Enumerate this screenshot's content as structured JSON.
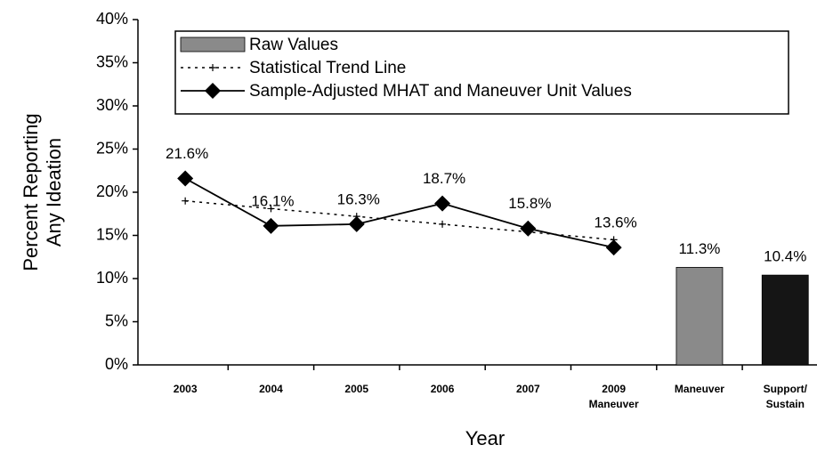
{
  "chart_data": {
    "type": "line",
    "x_label": "Year",
    "y_label": "Percent Reporting\nAny Ideation",
    "categories": [
      "2003",
      "2004",
      "2005",
      "2006",
      "2007",
      "2009\nManeuver",
      "Maneuver",
      "Support/\nSustain"
    ],
    "ylim": [
      0,
      40
    ],
    "yticks": [
      {
        "value": 0,
        "label": "0%"
      },
      {
        "value": 5,
        "label": "5%"
      },
      {
        "value": 10,
        "label": "10%"
      },
      {
        "value": 15,
        "label": "15%"
      },
      {
        "value": 20,
        "label": "20%"
      },
      {
        "value": 25,
        "label": "25%"
      },
      {
        "value": 30,
        "label": "30%"
      },
      {
        "value": 35,
        "label": "35%"
      },
      {
        "value": 40,
        "label": "40%"
      }
    ],
    "legend": "top",
    "series": [
      {
        "name": "Raw Values",
        "kind": "bar",
        "colors": [
          "#8a8a8a",
          "#151515"
        ],
        "values": [
          null,
          null,
          null,
          null,
          null,
          null,
          11.3,
          10.4
        ],
        "value_labels": [
          null,
          null,
          null,
          null,
          null,
          null,
          "11.3%",
          "10.4%"
        ]
      },
      {
        "name": "Statistical Trend Line",
        "kind": "trend",
        "color": "#000000",
        "values": [
          19.0,
          18.1,
          17.2,
          16.3,
          15.4,
          14.5,
          null,
          null
        ]
      },
      {
        "name": "Sample-Adjusted MHAT and Maneuver Unit Values",
        "kind": "line",
        "color": "#000000",
        "values": [
          21.6,
          16.1,
          16.3,
          18.7,
          15.8,
          13.6,
          null,
          null
        ],
        "value_labels": [
          "21.6%",
          "16.1%",
          "16.3%",
          "18.7%",
          "15.8%",
          "13.6%",
          null,
          null
        ]
      }
    ]
  }
}
